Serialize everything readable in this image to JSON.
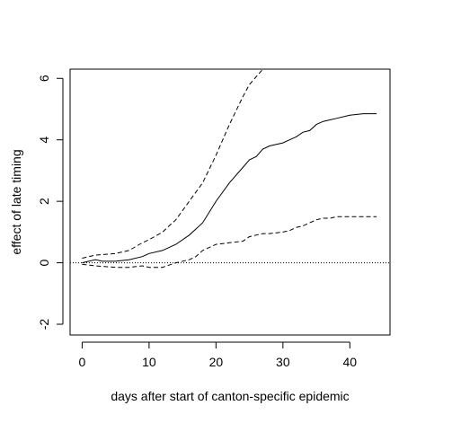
{
  "chart_data": {
    "type": "line",
    "title": "",
    "xlabel": "days after start of canton-specific epidemic",
    "ylabel": "effect of late timing",
    "xlim": [
      -1.8,
      46
    ],
    "ylim": [
      -2.35,
      6.3
    ],
    "xticks": [
      0,
      10,
      20,
      30,
      40
    ],
    "yticks": [
      -2,
      0,
      2,
      4,
      6
    ],
    "reference_line": {
      "y": 0,
      "style": "dotted"
    },
    "series": [
      {
        "style": "solid",
        "x": [
          0,
          2,
          3,
          5,
          7,
          9,
          10,
          12,
          14,
          16,
          18,
          20,
          22,
          24,
          25,
          26,
          27,
          28,
          30,
          31,
          32,
          33,
          34,
          35,
          36,
          37,
          38,
          40,
          42,
          44
        ],
        "y": [
          0.0,
          0.1,
          0.05,
          0.05,
          0.1,
          0.2,
          0.3,
          0.4,
          0.6,
          0.9,
          1.3,
          2.0,
          2.6,
          3.1,
          3.35,
          3.45,
          3.7,
          3.8,
          3.9,
          4.0,
          4.1,
          4.25,
          4.3,
          4.5,
          4.6,
          4.65,
          4.7,
          4.8,
          4.85,
          4.85
        ]
      },
      {
        "style": "dashed",
        "x": [
          0,
          2,
          5,
          7,
          9,
          10,
          12,
          14,
          16,
          18,
          20,
          22,
          24,
          25,
          26,
          27
        ],
        "y": [
          0.15,
          0.25,
          0.3,
          0.4,
          0.65,
          0.75,
          1.0,
          1.4,
          2.0,
          2.6,
          3.5,
          4.5,
          5.4,
          5.8,
          6.05,
          6.3
        ]
      },
      {
        "style": "dashed",
        "x": [
          0,
          2,
          5,
          7,
          9,
          10,
          12,
          14,
          16,
          17,
          18,
          20,
          22,
          24,
          25,
          26,
          27,
          28,
          30,
          31,
          32,
          33,
          34,
          35,
          36,
          37,
          38,
          40,
          42,
          44
        ],
        "y": [
          -0.05,
          -0.1,
          -0.15,
          -0.15,
          -0.1,
          -0.15,
          -0.15,
          0.0,
          0.1,
          0.2,
          0.4,
          0.6,
          0.65,
          0.7,
          0.85,
          0.9,
          0.95,
          0.95,
          1.0,
          1.05,
          1.15,
          1.2,
          1.3,
          1.4,
          1.45,
          1.45,
          1.5,
          1.5,
          1.5,
          1.5
        ]
      }
    ]
  }
}
